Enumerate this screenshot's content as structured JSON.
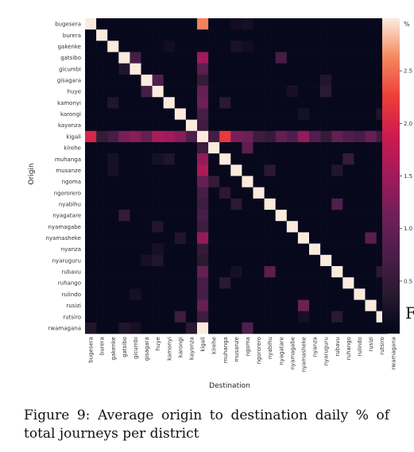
{
  "chart_data": {
    "type": "heatmap",
    "title": "",
    "xlabel": "Destination",
    "ylabel": "Origin",
    "rows": [
      "bugesera",
      "burera",
      "gakenke",
      "gatsibo",
      "gicumbi",
      "gisagara",
      "huye",
      "kamonyi",
      "karongi",
      "kayonza",
      "kigali",
      "kirehe",
      "muhanga",
      "musanze",
      "ngoma",
      "ngororero",
      "nyabihu",
      "nyagatare",
      "nyamagabe",
      "nyamasheke",
      "nyanza",
      "nyaruguru",
      "rubavu",
      "ruhango",
      "rulindo",
      "rusizi",
      "rutsiro",
      "rwamagana"
    ],
    "columns": [
      "bugesera",
      "burera",
      "gakenke",
      "gatsibo",
      "gicumbi",
      "gisagara",
      "huye",
      "kamonyi",
      "karongi",
      "kayonza",
      "kigali",
      "kirehe",
      "muhanga",
      "musanze",
      "ngoma",
      "ngororero",
      "nyabihu",
      "nyagatare",
      "nyamagabe",
      "nyamasheke",
      "nyanza",
      "nyaruguru",
      "rubavu",
      "ruhango",
      "rulindo",
      "rusizi",
      "rutsiro",
      "rwamagana"
    ],
    "diagonal_value": 3.0,
    "default_value": 0.05,
    "cells": [
      {
        "row": "bugesera",
        "col": "kigali",
        "value": 2.6
      },
      {
        "row": "bugesera",
        "col": "musanze",
        "value": 0.15
      },
      {
        "row": "bugesera",
        "col": "ngoma",
        "value": 0.2
      },
      {
        "row": "bugesera",
        "col": "rwamagana",
        "value": 0.3
      },
      {
        "row": "gakenke",
        "col": "kamonyi",
        "value": 0.15
      },
      {
        "row": "gakenke",
        "col": "musanze",
        "value": 0.25
      },
      {
        "row": "gakenke",
        "col": "ngoma",
        "value": 0.15
      },
      {
        "row": "gatsibo",
        "col": "gicumbi",
        "value": 0.7
      },
      {
        "row": "gatsibo",
        "col": "kigali",
        "value": 1.5
      },
      {
        "row": "gatsibo",
        "col": "nyagatare",
        "value": 0.7
      },
      {
        "row": "gatsibo",
        "col": "rwamagana",
        "value": 0.5
      },
      {
        "row": "gicumbi",
        "col": "gatsibo",
        "value": 0.3
      },
      {
        "row": "gicumbi",
        "col": "kigali",
        "value": 0.9
      },
      {
        "row": "gisagara",
        "col": "huye",
        "value": 0.8
      },
      {
        "row": "gisagara",
        "col": "kigali",
        "value": 0.5
      },
      {
        "row": "gisagara",
        "col": "nyaruguru",
        "value": 0.3
      },
      {
        "row": "huye",
        "col": "gisagara",
        "value": 0.7
      },
      {
        "row": "huye",
        "col": "kigali",
        "value": 1.0
      },
      {
        "row": "huye",
        "col": "nyaruguru",
        "value": 0.4
      },
      {
        "row": "huye",
        "col": "nyamagabe",
        "value": 0.2
      },
      {
        "row": "kamonyi",
        "col": "gakenke",
        "value": 0.3
      },
      {
        "row": "kamonyi",
        "col": "kigali",
        "value": 1.1
      },
      {
        "row": "kamonyi",
        "col": "muhanga",
        "value": 0.4
      },
      {
        "row": "karongi",
        "col": "kigali",
        "value": 0.7
      },
      {
        "row": "karongi",
        "col": "nyamasheke",
        "value": 0.2
      },
      {
        "row": "karongi",
        "col": "rutsiro",
        "value": 0.3
      },
      {
        "row": "kayonza",
        "col": "kigali",
        "value": 0.6
      },
      {
        "row": "kigali",
        "col": "bugesera",
        "value": 2.0
      },
      {
        "row": "kigali",
        "col": "burera",
        "value": 0.5
      },
      {
        "row": "kigali",
        "col": "gakenke",
        "value": 0.7
      },
      {
        "row": "kigali",
        "col": "gatsibo",
        "value": 1.2
      },
      {
        "row": "kigali",
        "col": "gicumbi",
        "value": 1.3
      },
      {
        "row": "kigali",
        "col": "gisagara",
        "value": 1.0
      },
      {
        "row": "kigali",
        "col": "huye",
        "value": 1.6
      },
      {
        "row": "kigali",
        "col": "kamonyi",
        "value": 1.5
      },
      {
        "row": "kigali",
        "col": "karongi",
        "value": 1.3
      },
      {
        "row": "kigali",
        "col": "kayonza",
        "value": 0.8
      },
      {
        "row": "kigali",
        "col": "kirehe",
        "value": 0.7
      },
      {
        "row": "kigali",
        "col": "muhanga",
        "value": 2.2
      },
      {
        "row": "kigali",
        "col": "musanze",
        "value": 1.2
      },
      {
        "row": "kigali",
        "col": "ngoma",
        "value": 1.1
      },
      {
        "row": "kigali",
        "col": "ngororero",
        "value": 0.6
      },
      {
        "row": "kigali",
        "col": "nyabihu",
        "value": 0.5
      },
      {
        "row": "kigali",
        "col": "nyagatare",
        "value": 1.0
      },
      {
        "row": "kigali",
        "col": "nyamagabe",
        "value": 0.8
      },
      {
        "row": "kigali",
        "col": "nyamasheke",
        "value": 1.4
      },
      {
        "row": "kigali",
        "col": "nyanza",
        "value": 0.8
      },
      {
        "row": "kigali",
        "col": "nyaruguru",
        "value": 0.5
      },
      {
        "row": "kigali",
        "col": "rubavu",
        "value": 1.0
      },
      {
        "row": "kigali",
        "col": "ruhango",
        "value": 0.8
      },
      {
        "row": "kigali",
        "col": "rulindo",
        "value": 0.7
      },
      {
        "row": "kigali",
        "col": "rusizi",
        "value": 1.0
      },
      {
        "row": "kigali",
        "col": "rutsiro",
        "value": 0.6
      },
      {
        "row": "kigali",
        "col": "rwamagana",
        "value": 3.0
      },
      {
        "row": "kirehe",
        "col": "kigali",
        "value": 0.6
      },
      {
        "row": "kirehe",
        "col": "ngoma",
        "value": 0.9
      },
      {
        "row": "muhanga",
        "col": "gakenke",
        "value": 0.2
      },
      {
        "row": "muhanga",
        "col": "huye",
        "value": 0.2
      },
      {
        "row": "muhanga",
        "col": "kamonyi",
        "value": 0.3
      },
      {
        "row": "muhanga",
        "col": "kigali",
        "value": 1.4
      },
      {
        "row": "muhanga",
        "col": "ruhango",
        "value": 0.5
      },
      {
        "row": "musanze",
        "col": "gakenke",
        "value": 0.2
      },
      {
        "row": "musanze",
        "col": "kigali",
        "value": 1.6
      },
      {
        "row": "musanze",
        "col": "nyabihu",
        "value": 0.4
      },
      {
        "row": "musanze",
        "col": "rubavu",
        "value": 0.3
      },
      {
        "row": "ngoma",
        "col": "kigali",
        "value": 1.0
      },
      {
        "row": "ngoma",
        "col": "kirehe",
        "value": 0.5
      },
      {
        "row": "ngoma",
        "col": "rwamagana",
        "value": 1.0
      },
      {
        "row": "ngororero",
        "col": "kigali",
        "value": 0.7
      },
      {
        "row": "ngororero",
        "col": "muhanga",
        "value": 0.4
      },
      {
        "row": "nyabihu",
        "col": "kigali",
        "value": 0.6
      },
      {
        "row": "nyabihu",
        "col": "musanze",
        "value": 0.4
      },
      {
        "row": "nyabihu",
        "col": "rubavu",
        "value": 0.8
      },
      {
        "row": "nyagatare",
        "col": "gatsibo",
        "value": 0.5
      },
      {
        "row": "nyagatare",
        "col": "kigali",
        "value": 0.7
      },
      {
        "row": "nyamagabe",
        "col": "huye",
        "value": 0.3
      },
      {
        "row": "nyamagabe",
        "col": "kigali",
        "value": 0.6
      },
      {
        "row": "nyamasheke",
        "col": "karongi",
        "value": 0.3
      },
      {
        "row": "nyamasheke",
        "col": "kigali",
        "value": 1.4
      },
      {
        "row": "nyamasheke",
        "col": "rusizi",
        "value": 0.9
      },
      {
        "row": "nyanza",
        "col": "kigali",
        "value": 0.5
      },
      {
        "row": "nyanza",
        "col": "huye",
        "value": 0.2
      },
      {
        "row": "nyaruguru",
        "col": "huye",
        "value": 0.3
      },
      {
        "row": "nyaruguru",
        "col": "gisagara",
        "value": 0.2
      },
      {
        "row": "nyaruguru",
        "col": "kigali",
        "value": 0.4
      },
      {
        "row": "rubavu",
        "col": "kigali",
        "value": 1.0
      },
      {
        "row": "rubavu",
        "col": "nyabihu",
        "value": 0.9
      },
      {
        "row": "rubavu",
        "col": "musanze",
        "value": 0.2
      },
      {
        "row": "rubavu",
        "col": "rutsiro",
        "value": 0.4
      },
      {
        "row": "ruhango",
        "col": "kigali",
        "value": 0.7
      },
      {
        "row": "ruhango",
        "col": "muhanga",
        "value": 0.4
      },
      {
        "row": "rulindo",
        "col": "kigali",
        "value": 0.7
      },
      {
        "row": "rulindo",
        "col": "gicumbi",
        "value": 0.2
      },
      {
        "row": "rusizi",
        "col": "kigali",
        "value": 1.0
      },
      {
        "row": "rusizi",
        "col": "nyamasheke",
        "value": 1.1
      },
      {
        "row": "rutsiro",
        "col": "karongi",
        "value": 0.6
      },
      {
        "row": "rutsiro",
        "col": "kigali",
        "value": 0.6
      },
      {
        "row": "rutsiro",
        "col": "rubavu",
        "value": 0.4
      },
      {
        "row": "rutsiro",
        "col": "nyamasheke",
        "value": 0.2
      },
      {
        "row": "rwamagana",
        "col": "bugesera",
        "value": 0.3
      },
      {
        "row": "rwamagana",
        "col": "gatsibo",
        "value": 0.3
      },
      {
        "row": "rwamagana",
        "col": "gicumbi",
        "value": 0.2
      },
      {
        "row": "rwamagana",
        "col": "kayonza",
        "value": 0.4
      },
      {
        "row": "rwamagana",
        "col": "kigali",
        "value": 3.0
      },
      {
        "row": "rwamagana",
        "col": "ngoma",
        "value": 0.8
      }
    ],
    "colorbar": {
      "label": "%",
      "ticks": [
        0.5,
        1.0,
        1.5,
        2.0,
        2.5
      ],
      "tick_labels": [
        "0.5",
        "1.0",
        "1.5",
        "2.0",
        "2.5"
      ],
      "range": [
        0,
        3.0
      ],
      "colormap": "rocket"
    },
    "grid": false,
    "legend": "colorbar-right"
  },
  "caption": "Figure 9: Average origin to destination daily % of total journeys per district",
  "cut_off_text": "F"
}
